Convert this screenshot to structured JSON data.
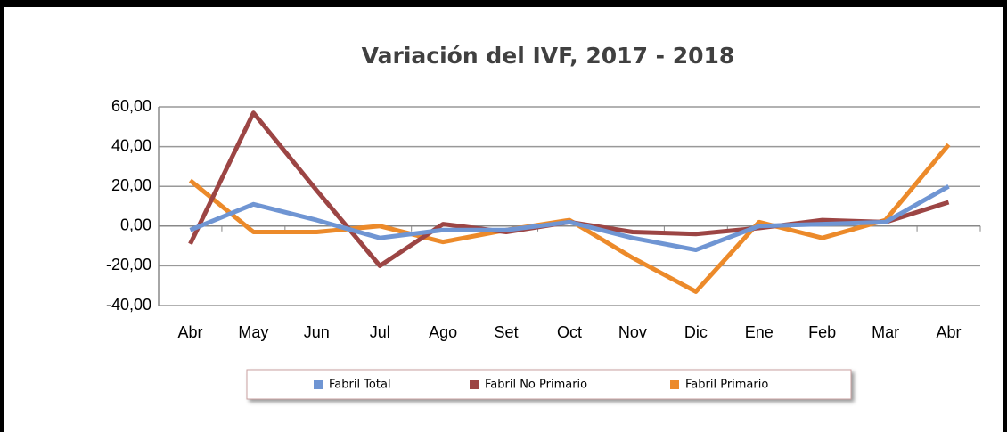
{
  "chart_data": {
    "type": "line",
    "title": "Variación del IVF, 2017 - 2018",
    "categories": [
      "Abr",
      "May",
      "Jun",
      "Jul",
      "Ago",
      "Set",
      "Oct",
      "Nov",
      "Dic",
      "Ene",
      "Feb",
      "Mar",
      "Abr"
    ],
    "series": [
      {
        "name": "Fabril Total",
        "color": "#6f95d3",
        "values": [
          -2,
          11,
          3,
          -6,
          -2,
          -2,
          2,
          -6,
          -12,
          0,
          1,
          2,
          20
        ]
      },
      {
        "name": "Fabril No Primario",
        "color": "#9c4544",
        "values": [
          -9,
          57,
          18,
          -20,
          1,
          -3,
          2,
          -3,
          -4,
          -1,
          3,
          2,
          12
        ]
      },
      {
        "name": "Fabril Primario",
        "color": "#ec8a2a",
        "values": [
          23,
          -3,
          -3,
          0,
          -8,
          -2,
          3,
          -16,
          -33,
          2,
          -6,
          3,
          41
        ]
      }
    ],
    "ylim": [
      -40,
      60
    ],
    "yticks": [
      {
        "value": -40,
        "label": "-40,00"
      },
      {
        "value": -20,
        "label": "-20,00"
      },
      {
        "value": 0,
        "label": "0,00"
      },
      {
        "value": 20,
        "label": "20,00"
      },
      {
        "value": 40,
        "label": "40,00"
      },
      {
        "value": 60,
        "label": "60,00"
      }
    ],
    "grid": true,
    "legend": "bottom"
  }
}
